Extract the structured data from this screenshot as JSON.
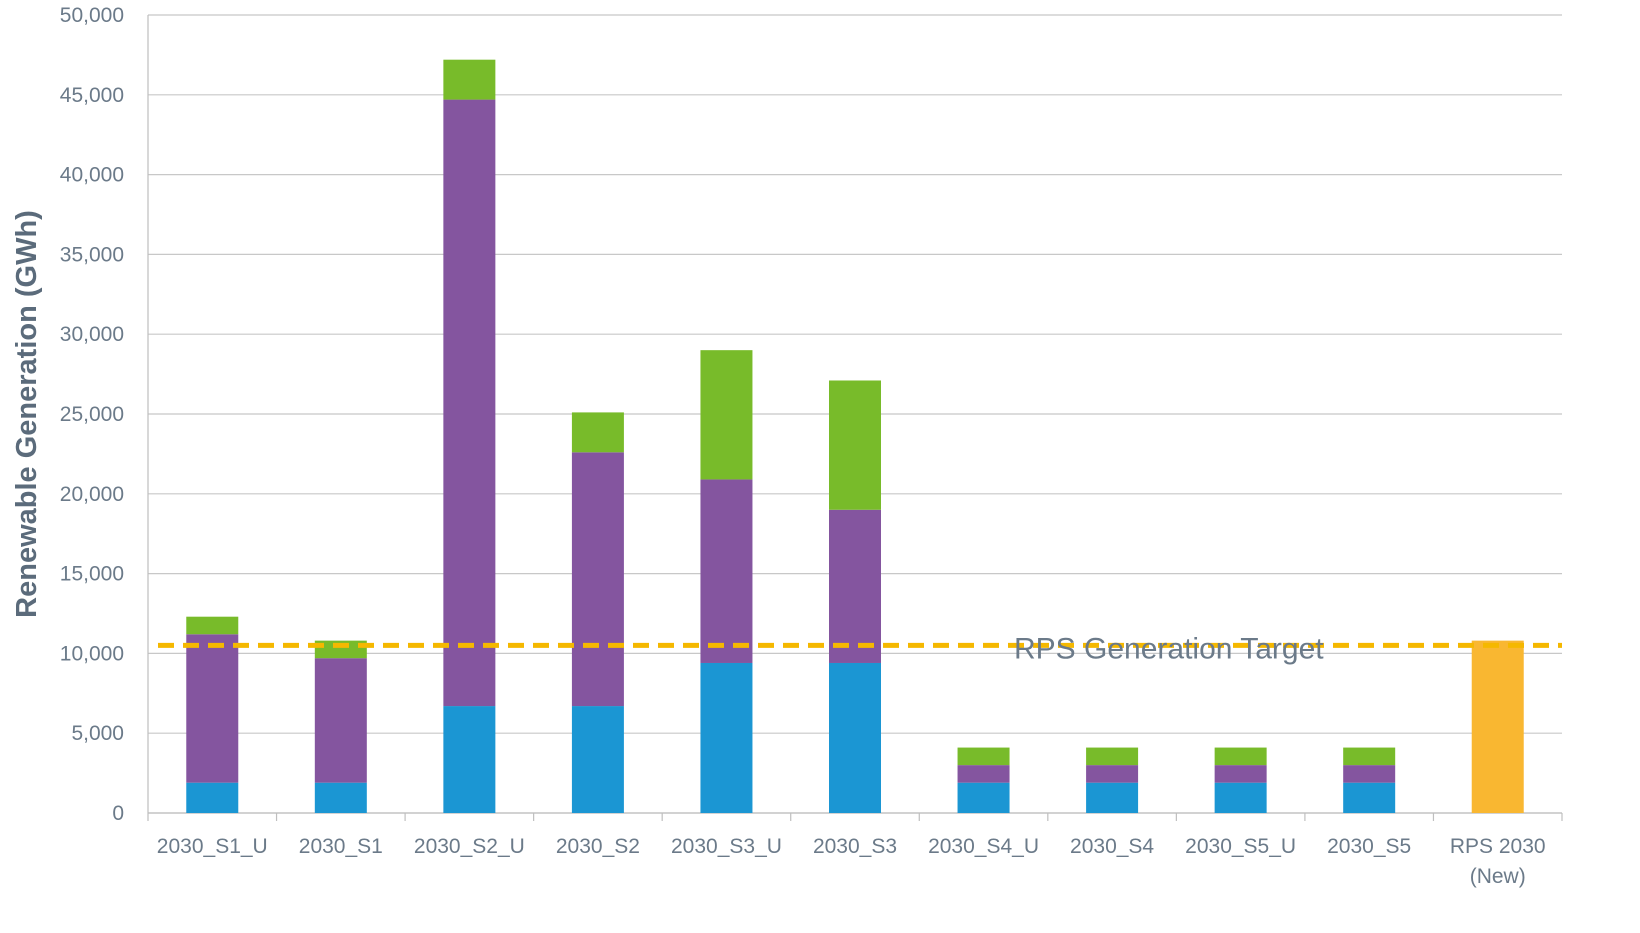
{
  "chart_data": {
    "type": "stacked_bar",
    "y_label": "Renewable Generation (GWh)",
    "categories": [
      "2030_S1_U",
      "2030_S1",
      "2030_S2_U",
      "2030_S2",
      "2030_S3_U",
      "2030_S3",
      "2030_S4_U",
      "2030_S4",
      "2030_S5_U",
      "2030_S5",
      "RPS 2030 (New)"
    ],
    "series": [
      {
        "color": "#1b96d3",
        "values": [
          1900,
          1900,
          6700,
          6700,
          9400,
          9400,
          1900,
          1900,
          1900,
          1900,
          null
        ]
      },
      {
        "color": "#84559f",
        "values": [
          9300,
          7800,
          38000,
          15900,
          11500,
          9600,
          1100,
          1100,
          1100,
          1100,
          null
        ]
      },
      {
        "color": "#78bb2a",
        "values": [
          1100,
          1100,
          2500,
          2500,
          8100,
          8100,
          1100,
          1100,
          1100,
          1100,
          null
        ]
      },
      {
        "color": "#f9b731",
        "values": [
          null,
          null,
          null,
          null,
          null,
          null,
          null,
          null,
          null,
          null,
          10800
        ]
      }
    ],
    "target": {
      "value": 10500,
      "label": "RPS Generation Target",
      "color": "#f5b800"
    },
    "ylim": [
      0,
      50000
    ],
    "yticks": [
      0,
      {
        "value": 5000,
        "label": "5,000"
      },
      {
        "value": 10000,
        "label": "10,000"
      },
      {
        "value": 15000,
        "label": "15,000"
      },
      {
        "value": 20000,
        "label": "20,000"
      },
      {
        "value": 25000,
        "label": "25,000"
      },
      {
        "value": 30000,
        "label": "30,000"
      },
      {
        "value": 35000,
        "label": "35,000"
      },
      {
        "value": 40000,
        "label": "40,000"
      },
      {
        "value": 45000,
        "label": "45,000"
      },
      {
        "value": 50000,
        "label": "50,000"
      }
    ],
    "grid": true
  }
}
